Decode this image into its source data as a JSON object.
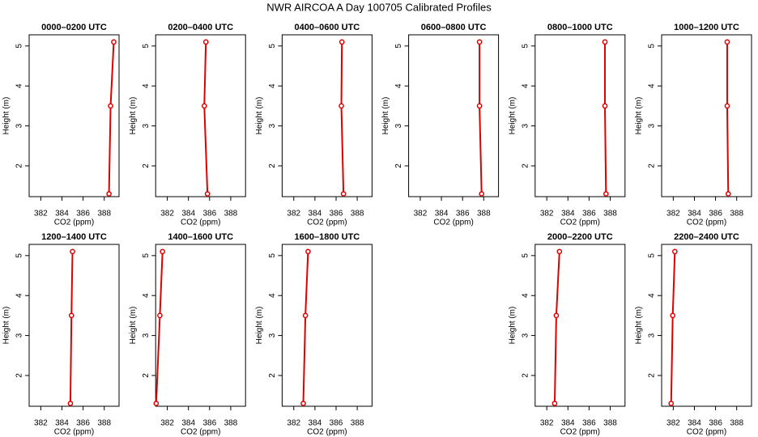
{
  "title": "NWR AIRCOA A  Day 100705  Calibrated Profiles",
  "chart_data": [
    {
      "type": "scatter",
      "title": "0000–0200 UTC",
      "x": [
        388.45,
        388.6,
        388.9
      ],
      "values": [
        1.3,
        3.5,
        5.1
      ],
      "color": "#e00000",
      "xlim": [
        380.9,
        389.4
      ],
      "ylim": [
        1.23,
        5.28
      ],
      "xticks": [
        382,
        384,
        386,
        388
      ],
      "yticks": [
        2,
        3,
        4,
        5
      ],
      "xlabel": "CO2 (ppm)",
      "ylabel": "Height (m)"
    },
    {
      "type": "scatter",
      "title": "0200–0400 UTC",
      "x": [
        385.8,
        385.5,
        385.65
      ],
      "values": [
        1.3,
        3.5,
        5.1
      ],
      "color": "#e00000",
      "xlim": [
        380.9,
        389.4
      ],
      "ylim": [
        1.23,
        5.28
      ],
      "xticks": [
        382,
        384,
        386,
        388
      ],
      "yticks": [
        2,
        3,
        4,
        5
      ],
      "xlabel": "CO2 (ppm)",
      "ylabel": "Height (m)"
    },
    {
      "type": "scatter",
      "title": "0400–0600 UTC",
      "x": [
        386.7,
        386.5,
        386.55
      ],
      "values": [
        1.3,
        3.5,
        5.1
      ],
      "color": "#e00000",
      "xlim": [
        380.9,
        389.4
      ],
      "ylim": [
        1.23,
        5.28
      ],
      "xticks": [
        382,
        384,
        386,
        388
      ],
      "yticks": [
        2,
        3,
        4,
        5
      ],
      "xlabel": "CO2 (ppm)",
      "ylabel": "Height (m)"
    },
    {
      "type": "scatter",
      "title": "0600–0800 UTC",
      "x": [
        387.8,
        387.6,
        387.6
      ],
      "values": [
        1.3,
        3.5,
        5.1
      ],
      "color": "#e00000",
      "xlim": [
        380.9,
        389.4
      ],
      "ylim": [
        1.23,
        5.28
      ],
      "xticks": [
        382,
        384,
        386,
        388
      ],
      "yticks": [
        2,
        3,
        4,
        5
      ],
      "xlabel": "CO2 (ppm)",
      "ylabel": "Height (m)"
    },
    {
      "type": "scatter",
      "title": "0800–1000 UTC",
      "x": [
        387.6,
        387.5,
        387.5
      ],
      "values": [
        1.3,
        3.5,
        5.1
      ],
      "color": "#e00000",
      "xlim": [
        380.9,
        389.4
      ],
      "ylim": [
        1.23,
        5.28
      ],
      "xticks": [
        382,
        384,
        386,
        388
      ],
      "yticks": [
        2,
        3,
        4,
        5
      ],
      "xlabel": "CO2 (ppm)",
      "ylabel": "Height (m)"
    },
    {
      "type": "scatter",
      "title": "1000–1200 UTC",
      "x": [
        387.2,
        387.1,
        387.1
      ],
      "values": [
        1.3,
        3.5,
        5.1
      ],
      "color": "#e00000",
      "xlim": [
        380.9,
        389.4
      ],
      "ylim": [
        1.23,
        5.28
      ],
      "xticks": [
        382,
        384,
        386,
        388
      ],
      "yticks": [
        2,
        3,
        4,
        5
      ],
      "xlabel": "CO2 (ppm)",
      "ylabel": "Height (m)"
    },
    {
      "type": "scatter",
      "title": "1200–1400 UTC",
      "x": [
        384.8,
        384.9,
        385.0
      ],
      "values": [
        1.3,
        3.5,
        5.1
      ],
      "color": "#e00000",
      "xlim": [
        380.9,
        389.4
      ],
      "ylim": [
        1.23,
        5.28
      ],
      "xticks": [
        382,
        384,
        386,
        388
      ],
      "yticks": [
        2,
        3,
        4,
        5
      ],
      "xlabel": "CO2 (ppm)",
      "ylabel": "Height (m)"
    },
    {
      "type": "scatter",
      "title": "1400–1600 UTC",
      "x": [
        380.95,
        381.3,
        381.55
      ],
      "values": [
        1.3,
        3.5,
        5.1
      ],
      "color": "#e00000",
      "xlim": [
        380.9,
        389.4
      ],
      "ylim": [
        1.23,
        5.28
      ],
      "xticks": [
        382,
        384,
        386,
        388
      ],
      "yticks": [
        2,
        3,
        4,
        5
      ],
      "xlabel": "CO2 (ppm)",
      "ylabel": "Height (m)"
    },
    {
      "type": "scatter",
      "title": "1600–1800 UTC",
      "x": [
        382.9,
        383.1,
        383.35
      ],
      "values": [
        1.3,
        3.5,
        5.1
      ],
      "color": "#e00000",
      "xlim": [
        380.9,
        389.4
      ],
      "ylim": [
        1.23,
        5.28
      ],
      "xticks": [
        382,
        384,
        386,
        388
      ],
      "yticks": [
        2,
        3,
        4,
        5
      ],
      "xlabel": "CO2 (ppm)",
      "ylabel": "Height (m)"
    },
    {
      "type": "scatter",
      "title": "2000–2200 UTC",
      "x": [
        382.75,
        382.9,
        383.2
      ],
      "values": [
        1.3,
        3.5,
        5.1
      ],
      "color": "#e00000",
      "xlim": [
        380.9,
        389.4
      ],
      "ylim": [
        1.23,
        5.28
      ],
      "xticks": [
        382,
        384,
        386,
        388
      ],
      "yticks": [
        2,
        3,
        4,
        5
      ],
      "xlabel": "CO2 (ppm)",
      "ylabel": "Height (m)"
    },
    {
      "type": "scatter",
      "title": "2200–2400 UTC",
      "x": [
        381.8,
        381.95,
        382.15
      ],
      "values": [
        1.3,
        3.5,
        5.1
      ],
      "color": "#e00000",
      "xlim": [
        380.9,
        389.4
      ],
      "ylim": [
        1.23,
        5.28
      ],
      "xticks": [
        382,
        384,
        386,
        388
      ],
      "yticks": [
        2,
        3,
        4,
        5
      ],
      "xlabel": "CO2 (ppm)",
      "ylabel": "Height (m)"
    }
  ]
}
